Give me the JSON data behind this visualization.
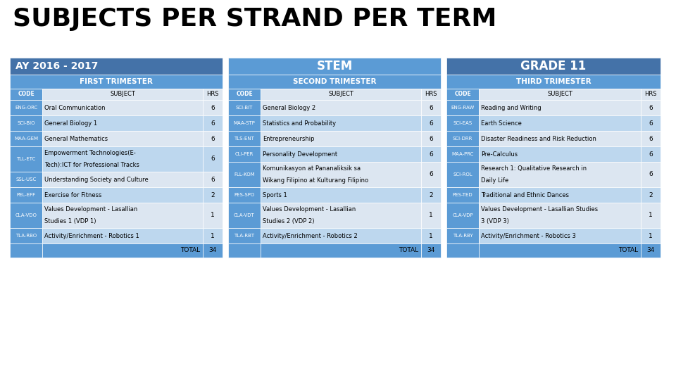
{
  "title": "SUBJECTS PER STRAND PER TERM",
  "header_ay": "AY 2016 - 2017",
  "header_stem": "STEM",
  "header_grade": "GRADE 11",
  "trim1_header": "FIRST TRIMESTER",
  "trim2_header": "SECOND TRIMESTER",
  "trim3_header": "THIRD TRIMESTER",
  "trim1_data": [
    [
      "ENG-ORC",
      "Oral Communication",
      "6"
    ],
    [
      "SCI-BIO",
      "General Biology 1",
      "6"
    ],
    [
      "MAA-GEM",
      "General Mathematics",
      "6"
    ],
    [
      "TLL-ETC",
      "Empowerment Technologies(E-\nTech):ICT for Professional Tracks",
      "6"
    ],
    [
      "SSL-USC",
      "Understanding Society and Culture",
      "6"
    ],
    [
      "PEL-EFF",
      "Exercise for Fitness",
      "2"
    ],
    [
      "CLA-VDO",
      "Values Development - Lasallian\nStudies 1 (VDP 1)",
      "1"
    ],
    [
      "TLA-RBO",
      "Activity/Enrichment - Robotics 1",
      "1"
    ],
    [
      "TOTAL",
      "34"
    ]
  ],
  "trim2_data": [
    [
      "SCI-BIT",
      "General Biology 2",
      "6"
    ],
    [
      "MAA-STP",
      "Statistics and Probability",
      "6"
    ],
    [
      "TLS-ENT",
      "Entrepreneurship",
      "6"
    ],
    [
      "CLI-PER",
      "Personality Development",
      "6"
    ],
    [
      "FLL-KOM",
      "Komunikasyon at Pananaliksik sa\nWikang Filipino at Kulturang Filipino",
      "6"
    ],
    [
      "PES-SPO",
      "Sports 1",
      "2"
    ],
    [
      "CLA-VDT",
      "Values Development - Lasallian\nStudies 2 (VDP 2)",
      "1"
    ],
    [
      "TLA-RBT",
      "Activity/Enrichment - Robotics 2",
      "1"
    ],
    [
      "TOTAL",
      "34"
    ]
  ],
  "trim3_data": [
    [
      "ENG-RAW",
      "Reading and Writing",
      "6"
    ],
    [
      "SCI-EAS",
      "Earth Science",
      "6"
    ],
    [
      "SCI-DRR",
      "Disaster Readiness and Risk Reduction",
      "6"
    ],
    [
      "MAA-PRC",
      "Pre-Calculus",
      "6"
    ],
    [
      "SCI-ROL",
      "Research 1: Qualitative Research in\nDaily Life",
      "6"
    ],
    [
      "PES-TED",
      "Traditional and Ethnic Dances",
      "2"
    ],
    [
      "CLA-VDP",
      "Values Development - Lasallian Studies\n3 (VDP 3)",
      "1"
    ],
    [
      "TLA-RBY",
      "Activity/Enrichment - Robotics 3",
      "1"
    ],
    [
      "TOTAL",
      "34"
    ]
  ],
  "c_dark": "#4472a8",
  "c_med": "#5b9bd5",
  "c_light1": "#dce6f1",
  "c_light2": "#bdd7ee",
  "c_white": "#ffffff",
  "c_black": "#000000",
  "c_bg": "#ffffff"
}
